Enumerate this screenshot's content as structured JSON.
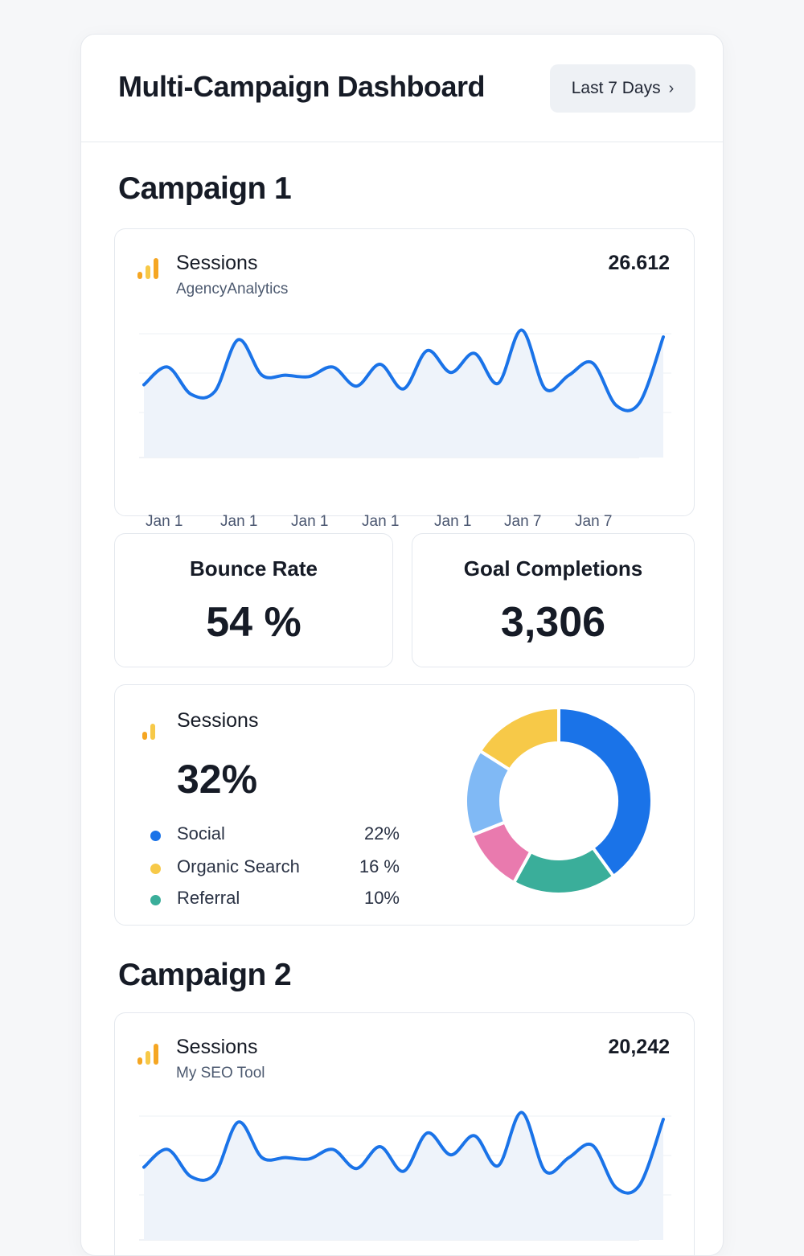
{
  "header": {
    "title": "Multi-Campaign Dashboard",
    "date_range_label": "Last 7 Days",
    "date_range_icon": "chevron-right-icon"
  },
  "campaigns": [
    {
      "title": "Campaign 1",
      "sessions_card": {
        "icon": "bar-chart-icon",
        "metric": "Sessions",
        "source": "AgencyAnalytics",
        "total": "26.612",
        "x_labels": [
          "Jan 1",
          "Jan 1",
          "Jan 1",
          "Jan 1",
          "Jan 1",
          "Jan 7",
          "Jan 7"
        ]
      },
      "bounce_rate": {
        "label": "Bounce Rate",
        "value": "54 %"
      },
      "goal_completions": {
        "label": "Goal Completions",
        "value": "3,306"
      },
      "traffic_card": {
        "icon": "bar-chart-icon",
        "metric": "Sessions",
        "value": "32%",
        "legend": [
          {
            "label": "Social",
            "percent": "22%",
            "color": "#1a73e8"
          },
          {
            "label": "Organic Search",
            "percent": "16 %",
            "color": "#f7c948"
          },
          {
            "label": "Referral",
            "percent": "10%",
            "color": "#3aae9a"
          }
        ]
      }
    },
    {
      "title": "Campaign 2",
      "sessions_card": {
        "icon": "bar-chart-icon",
        "metric": "Sessions",
        "source": "My SEO Tool",
        "total": "20,242"
      }
    }
  ],
  "colors": {
    "line": "#1a73e8",
    "area_fill": "#eef3fa",
    "icon_bars": [
      "#f5a623",
      "#f7c948",
      "#f5a623"
    ],
    "donut": [
      "#1a73e8",
      "#3aae9a",
      "#e97aae",
      "#80b9f5",
      "#f7c948"
    ]
  },
  "chart_data": [
    {
      "type": "line",
      "name_ref": "Campaign 1 Sessions",
      "x_tick_labels": [
        "Jan 1",
        "Jan 1",
        "Jan 1",
        "Jan 1",
        "Jan 1",
        "Jan 7",
        "Jan 7"
      ],
      "y": [
        45,
        58,
        38,
        40,
        78,
        52,
        52,
        51,
        58,
        44,
        60,
        42,
        70,
        54,
        68,
        46,
        85,
        42,
        52,
        61,
        30,
        32,
        80
      ],
      "ylim": [
        0,
        100
      ],
      "grid": true,
      "legend": "none"
    },
    {
      "type": "pie",
      "style": "donut",
      "slices": [
        {
          "label": "",
          "value": 40,
          "color": "#1a73e8"
        },
        {
          "label": "",
          "value": 18,
          "color": "#3aae9a"
        },
        {
          "label": "",
          "value": 11,
          "color": "#e97aae"
        },
        {
          "label": "",
          "value": 15,
          "color": "#80b9f5"
        },
        {
          "label": "",
          "value": 16,
          "color": "#f7c948"
        }
      ]
    },
    {
      "type": "line",
      "name_ref": "Campaign 2 Sessions",
      "y": [
        45,
        58,
        38,
        40,
        78,
        52,
        52,
        51,
        58,
        44,
        60,
        42,
        70,
        54,
        68,
        46,
        85,
        42,
        52,
        61,
        30,
        32,
        80
      ],
      "ylim": [
        0,
        100
      ],
      "grid": true,
      "legend": "none"
    }
  ]
}
